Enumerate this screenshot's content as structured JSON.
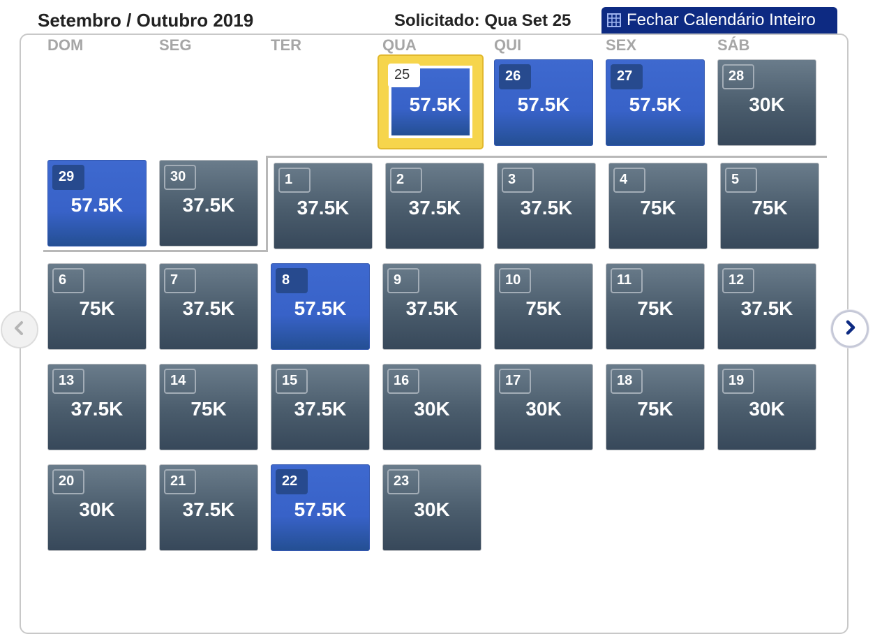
{
  "header": {
    "title": "Setembro / Outubro 2019",
    "requested": "Solicitado: Qua Set 25",
    "close_button_label": "Fechar Calendário Inteiro",
    "close_button_icon": "calendar-grid-icon"
  },
  "weekdays": [
    "DOM",
    "SEG",
    "TER",
    "QUA",
    "QUI",
    "SEX",
    "SÁB"
  ],
  "days": [
    {
      "day": "25",
      "price": "57.5K",
      "selected": true
    },
    {
      "day": "26",
      "price": "57.5K",
      "highlight": "blue"
    },
    {
      "day": "27",
      "price": "57.5K",
      "highlight": "blue"
    },
    {
      "day": "28",
      "price": "30K"
    },
    {
      "day": "29",
      "price": "57.5K",
      "highlight": "blue"
    },
    {
      "day": "30",
      "price": "37.5K"
    },
    {
      "day": "1",
      "price": "37.5K"
    },
    {
      "day": "2",
      "price": "37.5K"
    },
    {
      "day": "3",
      "price": "37.5K"
    },
    {
      "day": "4",
      "price": "75K"
    },
    {
      "day": "5",
      "price": "75K"
    },
    {
      "day": "6",
      "price": "75K"
    },
    {
      "day": "7",
      "price": "37.5K"
    },
    {
      "day": "8",
      "price": "57.5K",
      "highlight": "blue"
    },
    {
      "day": "9",
      "price": "37.5K"
    },
    {
      "day": "10",
      "price": "75K"
    },
    {
      "day": "11",
      "price": "75K"
    },
    {
      "day": "12",
      "price": "37.5K"
    },
    {
      "day": "13",
      "price": "37.5K"
    },
    {
      "day": "14",
      "price": "75K"
    },
    {
      "day": "15",
      "price": "37.5K"
    },
    {
      "day": "16",
      "price": "30K"
    },
    {
      "day": "17",
      "price": "30K"
    },
    {
      "day": "18",
      "price": "75K"
    },
    {
      "day": "19",
      "price": "30K"
    },
    {
      "day": "20",
      "price": "30K"
    },
    {
      "day": "21",
      "price": "37.5K"
    },
    {
      "day": "22",
      "price": "57.5K",
      "highlight": "blue"
    },
    {
      "day": "23",
      "price": "30K"
    }
  ],
  "navigation": {
    "prev_icon": "chevron-left-icon",
    "next_icon": "chevron-right-icon"
  },
  "colors": {
    "standard_day": "#4a5c6c",
    "highlight_day": "#3862c8",
    "selected_border": "#f6d54c",
    "header_button": "#0d2a82"
  }
}
